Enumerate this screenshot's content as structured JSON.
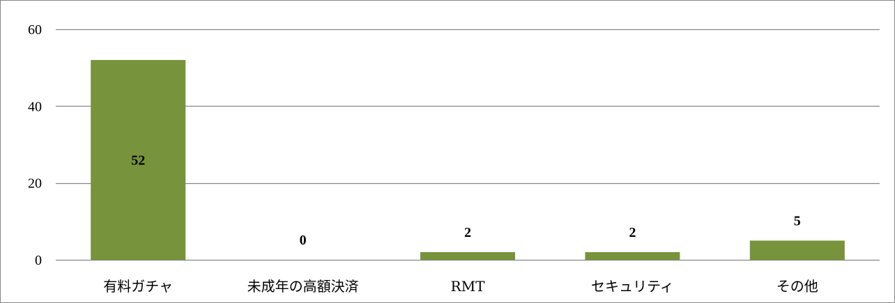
{
  "chart_data": {
    "type": "bar",
    "title": "",
    "xlabel": "",
    "ylabel": "",
    "categories": [
      "有料ガチャ",
      "未成年の高額決済",
      "RMT",
      "セキュリティ",
      "その他"
    ],
    "values": [
      52,
      0,
      2,
      2,
      5
    ],
    "data_labels": [
      "52",
      "0",
      "2",
      "2",
      "5"
    ],
    "ylim": [
      0,
      60
    ],
    "yticks": [
      0,
      20,
      40,
      60
    ],
    "ytick_labels": [
      "0",
      "20",
      "40",
      "60"
    ],
    "grid": true,
    "legend": "none",
    "colors": {
      "bar": "#77933C",
      "bar_edge": "#5E7A2B",
      "grid": "#868686",
      "frame": "#868686"
    }
  }
}
